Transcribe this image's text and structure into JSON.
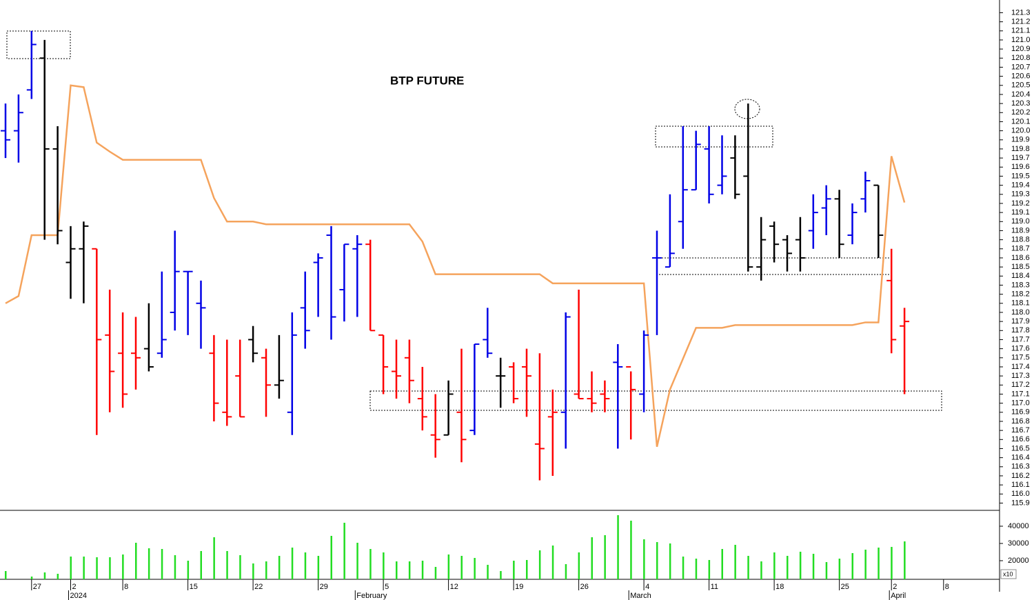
{
  "chart_data": {
    "type": "ohlc",
    "title": "BTP FUTURE",
    "categories": [
      null,
      null,
      "27",
      null,
      null,
      "2",
      null,
      null,
      null,
      "8",
      null,
      null,
      null,
      null,
      "15",
      null,
      null,
      null,
      null,
      "22",
      null,
      null,
      null,
      null,
      "29",
      null,
      null,
      null,
      null,
      "5",
      null,
      null,
      null,
      null,
      "12",
      null,
      null,
      null,
      null,
      "19",
      null,
      null,
      null,
      null,
      "26",
      null,
      null,
      null,
      null,
      "4",
      null,
      null,
      null,
      null,
      "11",
      null,
      null,
      null,
      null,
      "18",
      null,
      null,
      null,
      null,
      "25",
      null,
      null,
      null,
      "2",
      null,
      null,
      null,
      "8"
    ],
    "months": [
      null,
      null,
      null,
      null,
      null,
      "2024",
      null,
      null,
      null,
      null,
      null,
      null,
      null,
      null,
      null,
      null,
      null,
      null,
      null,
      null,
      null,
      null,
      null,
      null,
      null,
      null,
      null,
      "February",
      null,
      null,
      null,
      null,
      null,
      null,
      null,
      null,
      null,
      null,
      null,
      null,
      null,
      null,
      null,
      null,
      null,
      null,
      null,
      null,
      "March",
      null,
      null,
      null,
      null,
      null,
      null,
      null,
      null,
      null,
      null,
      null,
      null,
      null,
      null,
      null,
      null,
      null,
      null,
      null,
      "April",
      null,
      null,
      null,
      null
    ],
    "open": [
      120.0,
      120.0,
      120.45,
      120.8,
      119.8,
      118.55,
      118.7,
      118.7,
      117.75,
      117.55,
      117.55,
      117.6,
      117.55,
      118.0,
      118.45,
      118.1,
      117.55,
      116.9,
      117.3,
      117.7,
      117.5,
      117.2,
      116.9,
      118.05,
      118.55,
      118.85,
      118.25,
      118.7,
      118.75,
      117.75,
      117.35,
      117.5,
      117.05,
      116.65,
      116.65,
      116.9,
      116.7,
      117.7,
      117.3,
      117.4,
      117.4,
      116.55,
      116.85,
      116.9,
      117.1,
      117.05,
      117.1,
      117.45,
      117.4,
      117.1,
      118.6,
      118.5,
      119.0,
      119.35,
      119.8,
      119.4,
      119.7,
      119.5,
      118.5,
      118.95,
      118.8,
      118.8,
      118.9,
      119.15,
      119.25,
      118.85,
      119.25,
      119.4,
      118.35,
      117.85,
      null,
      null,
      null
    ],
    "high": [
      120.3,
      120.4,
      121.1,
      121.0,
      120.05,
      118.95,
      119.0,
      118.7,
      118.25,
      118.0,
      117.95,
      118.1,
      118.45,
      118.9,
      118.45,
      118.35,
      117.75,
      117.7,
      117.7,
      117.85,
      117.6,
      117.75,
      118.0,
      118.45,
      118.65,
      118.95,
      118.75,
      118.85,
      118.8,
      117.75,
      117.7,
      117.7,
      117.4,
      117.1,
      117.25,
      117.6,
      117.65,
      118.05,
      117.5,
      117.45,
      117.6,
      117.55,
      117.15,
      118.0,
      118.25,
      117.35,
      117.25,
      117.65,
      117.35,
      117.8,
      118.9,
      119.3,
      120.05,
      120.0,
      120.05,
      119.95,
      119.95,
      120.3,
      119.05,
      119.0,
      118.85,
      119.05,
      119.3,
      119.4,
      119.35,
      119.2,
      119.55,
      119.4,
      118.7,
      118.05,
      null,
      null,
      null
    ],
    "low": [
      119.7,
      119.65,
      120.35,
      118.8,
      118.75,
      118.15,
      118.1,
      116.65,
      116.9,
      116.95,
      117.15,
      117.35,
      117.5,
      117.8,
      117.75,
      117.6,
      116.8,
      116.75,
      116.85,
      117.45,
      116.85,
      117.05,
      116.65,
      117.6,
      117.95,
      117.7,
      117.9,
      117.95,
      117.8,
      117.1,
      117.05,
      117.0,
      116.7,
      116.4,
      116.65,
      116.35,
      116.65,
      117.5,
      116.95,
      117.0,
      116.85,
      116.15,
      116.2,
      116.5,
      117.05,
      116.9,
      116.9,
      116.5,
      116.6,
      116.9,
      117.75,
      118.5,
      118.7,
      119.35,
      119.2,
      119.3,
      119.25,
      118.45,
      118.35,
      118.55,
      118.45,
      118.45,
      118.7,
      118.85,
      118.6,
      118.75,
      119.1,
      118.6,
      117.55,
      117.1,
      null,
      null,
      null
    ],
    "close": [
      119.9,
      120.2,
      120.95,
      119.8,
      118.9,
      118.7,
      118.95,
      117.7,
      117.35,
      117.1,
      117.5,
      117.4,
      117.7,
      118.45,
      118.45,
      118.05,
      117.0,
      116.85,
      116.85,
      117.55,
      117.2,
      117.25,
      117.75,
      117.8,
      118.6,
      117.95,
      118.75,
      118.75,
      117.8,
      117.4,
      117.3,
      117.25,
      116.85,
      116.6,
      117.1,
      116.6,
      117.65,
      117.55,
      117.3,
      117.05,
      117.3,
      116.5,
      116.9,
      117.95,
      117.05,
      117.0,
      117.05,
      117.4,
      117.15,
      117.75,
      118.6,
      118.65,
      119.35,
      119.85,
      119.3,
      119.5,
      119.3,
      118.5,
      118.8,
      118.75,
      118.65,
      118.6,
      119.1,
      119.25,
      118.75,
      119.1,
      119.45,
      118.85,
      117.7,
      117.9,
      null,
      null,
      null
    ],
    "colors": [
      "#0000e6",
      "#0000e6",
      "#0000e6",
      "#000000",
      "#000000",
      "#000000",
      "#000000",
      "#ff0000",
      "#ff0000",
      "#ff0000",
      "#ff0000",
      "#000000",
      "#0000e6",
      "#0000e6",
      "#0000e6",
      "#0000e6",
      "#ff0000",
      "#ff0000",
      "#ff0000",
      "#000000",
      "#ff0000",
      "#000000",
      "#0000e6",
      "#0000e6",
      "#0000e6",
      "#0000e6",
      "#0000e6",
      "#0000e6",
      "#ff0000",
      "#ff0000",
      "#ff0000",
      "#ff0000",
      "#ff0000",
      "#ff0000",
      "#000000",
      "#ff0000",
      "#0000e6",
      "#0000e6",
      "#000000",
      "#ff0000",
      "#ff0000",
      "#ff0000",
      "#ff0000",
      "#0000e6",
      "#ff0000",
      "#ff0000",
      "#ff0000",
      "#0000e6",
      "#ff0000",
      "#0000e6",
      "#0000e6",
      "#0000e6",
      "#0000e6",
      "#0000e6",
      "#0000e6",
      "#0000e6",
      "#000000",
      "#000000",
      "#000000",
      "#000000",
      "#000000",
      "#000000",
      "#0000e6",
      "#0000e6",
      "#000000",
      "#0000e6",
      "#0000e6",
      "#000000",
      "#ff0000",
      "#ff0000",
      null,
      null,
      null
    ],
    "ylim": [
      115.82,
      121.44
    ],
    "yticks": [
      115.9,
      {
        "value": 116,
        "label": "116.0"
      },
      116.1,
      116.2,
      116.3,
      116.4,
      116.5,
      116.6,
      116.7,
      116.8,
      116.9,
      {
        "value": 117,
        "label": "117.0"
      },
      117.1,
      117.2,
      117.3,
      117.4,
      117.5,
      117.6,
      117.7,
      117.8,
      117.9,
      {
        "value": 118,
        "label": "118.0"
      },
      118.1,
      118.2,
      118.3,
      118.4,
      118.5,
      118.6,
      118.7,
      118.8,
      118.9,
      {
        "value": 119,
        "label": "119.0"
      },
      119.1,
      119.2,
      119.3,
      119.4,
      119.5,
      119.6,
      119.7,
      119.8,
      119.9,
      {
        "value": 120,
        "label": "120.0"
      },
      120.1,
      120.2,
      120.3,
      120.4,
      120.5,
      120.6,
      120.7,
      120.8,
      120.9,
      {
        "value": 121,
        "label": "121.0"
      },
      121.1,
      121.2,
      121.3
    ],
    "line": {
      "color": "#f5a35c",
      "values": [
        118.1,
        118.18,
        118.85,
        118.85,
        118.85,
        120.5,
        120.48,
        119.87,
        119.77,
        119.68,
        119.68,
        119.68,
        119.68,
        119.68,
        119.68,
        119.68,
        119.26,
        119.0,
        119.0,
        119.0,
        118.97,
        118.97,
        118.97,
        118.97,
        118.97,
        118.97,
        118.97,
        118.97,
        118.97,
        118.97,
        118.97,
        118.97,
        118.78,
        118.42,
        118.42,
        118.42,
        118.42,
        118.42,
        118.42,
        118.42,
        118.42,
        118.42,
        118.32,
        118.32,
        118.32,
        118.32,
        118.32,
        118.32,
        118.32,
        118.32,
        116.52,
        117.15,
        117.49,
        117.83,
        117.83,
        117.83,
        117.86,
        117.86,
        117.86,
        117.86,
        117.86,
        117.86,
        117.86,
        117.86,
        117.86,
        117.86,
        117.89,
        117.89,
        119.72,
        119.21,
        null,
        null,
        null
      ]
    },
    "volume": {
      "type": "bar",
      "color": "#22dd22",
      "unit_label": "x10",
      "values": [
        14000,
        null,
        10800,
        13200,
        12400,
        22400,
        22400,
        22000,
        22000,
        23600,
        30400,
        27200,
        26800,
        23200,
        20000,
        25600,
        33600,
        25600,
        23200,
        18400,
        19600,
        22800,
        27600,
        24800,
        22800,
        34400,
        42000,
        30400,
        26800,
        24800,
        19600,
        19600,
        20000,
        16400,
        23600,
        22800,
        21600,
        17600,
        14000,
        20000,
        20400,
        26000,
        28800,
        18000,
        24800,
        33600,
        34800,
        46400,
        43200,
        32400,
        30800,
        30000,
        22400,
        21200,
        20400,
        26800,
        29200,
        22800,
        19600,
        24800,
        22800,
        25200,
        24000,
        19200,
        21200,
        24400,
        26400,
        27600,
        28000,
        31200,
        null,
        null,
        null
      ],
      "ylim": [
        9200,
        49200
      ],
      "yticks": [
        20000,
        30000,
        40000
      ]
    }
  }
}
